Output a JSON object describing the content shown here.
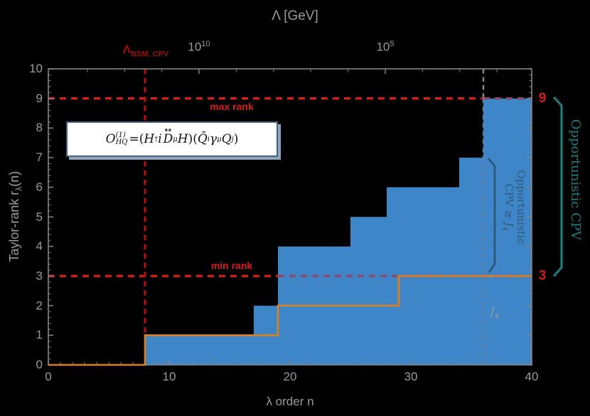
{
  "colors": {
    "background": "#000000",
    "frame": "#858585",
    "tick_text": "#9a9a9a",
    "blue_fill": "#3f86c8",
    "orange": "#dd7e1f",
    "red": "#d81b1b",
    "dark_red_line": "#b31111",
    "dark_red_text": "#9b0e0e",
    "gray_dash": "#8a8a8a",
    "red_over_blue": "#8c4a68",
    "gray_over_blue": "#5f7f9f",
    "teal": "#1d7c7a",
    "slate": "#2d5878",
    "eq_border": "#3d6286"
  },
  "top_axis": {
    "title": "Λ [GeV]",
    "bsm_label": {
      "symbol": "Λ",
      "subscript": "BSM, CPV"
    },
    "tick1": {
      "base": "10",
      "exp": "10"
    },
    "tick2": {
      "base": "10",
      "exp": "5"
    }
  },
  "y_axis": {
    "label_prefix": "Taylor-rank  r",
    "label_sub": "λ",
    "label_suffix": "(n)"
  },
  "x_axis": {
    "label": "λ order n"
  },
  "annotations": {
    "max_rank": "max rank",
    "min_rank": "min rank",
    "right_max": "9",
    "right_min": "3",
    "j4_symbol": "J",
    "j4_sub": "4",
    "opportunistic_cpv": "Opportunistic CPV",
    "opp_line1": "Opportunistic",
    "opp_line2_prefix": "CPV ",
    "opp_line2_gtrsim": "≳",
    "opp_line2_j": " J",
    "opp_line2_sub": "4"
  },
  "equation": {
    "o": "O",
    "o_sup": "(1)",
    "o_sub": "HQ",
    "eq": " = ",
    "p1": "(",
    "h1": "H",
    "dag": "†",
    "i": "i",
    "arrow": "↔",
    "d": "D",
    "mu1": "μ",
    "h2": "H",
    "p2": ")(",
    "qbar": "Q̄",
    "qi": "i",
    "gamma": "γ",
    "mu2": "μ",
    "q": "Q",
    "qj": "j",
    "p3": ")"
  },
  "chart_data": {
    "type": "step-area",
    "title": "Taylor-rank of CPV operator coefficient vs lambda order",
    "xlabel": "λ order n",
    "ylabel": "Taylor-rank r_λ(n)",
    "xlim": [
      0,
      40
    ],
    "ylim": [
      0,
      10
    ],
    "x_major_ticks": [
      0,
      10,
      20,
      30,
      40
    ],
    "x_minor_step": 1,
    "y_major_ticks": [
      0,
      1,
      2,
      3,
      4,
      5,
      6,
      7,
      8,
      9,
      10
    ],
    "y_minor_step": 0.2,
    "top_axis_label": "Λ [GeV]",
    "top_major_ticks_n": [
      12.47,
      27.88
    ],
    "top_minor_ticks_n": [
      3.24,
      6.32,
      9.39,
      15.55,
      18.63,
      21.71,
      24.8,
      30.96,
      34.04,
      37.12
    ],
    "series": [
      {
        "name": "blue-rank-region",
        "style": "filled-steps",
        "steps": [
          {
            "n_from": 8,
            "n_to": 17,
            "rank": 1
          },
          {
            "n_from": 17,
            "n_to": 19,
            "rank": 2
          },
          {
            "n_from": 19,
            "n_to": 25,
            "rank": 4
          },
          {
            "n_from": 25,
            "n_to": 28,
            "rank": 5
          },
          {
            "n_from": 28,
            "n_to": 34,
            "rank": 6
          },
          {
            "n_from": 34,
            "n_to": 36,
            "rank": 7
          },
          {
            "n_from": 36,
            "n_to": 40,
            "rank": 9
          }
        ]
      },
      {
        "name": "orange-rank-line",
        "style": "step-line",
        "steps": [
          {
            "n_from": 0,
            "n_to": 8,
            "rank": 0
          },
          {
            "n_from": 8,
            "n_to": 19,
            "rank": 1
          },
          {
            "n_from": 19,
            "n_to": 29,
            "rank": 2
          },
          {
            "n_from": 29,
            "n_to": 40,
            "rank": 3
          }
        ]
      }
    ],
    "reference_lines": {
      "max_rank": 9,
      "min_rank": 3,
      "bsm_cpv_vertical_n": 8,
      "j4_vertical_n": 36,
      "blue_starts_above_min_rank_at_n": 19
    },
    "brackets": {
      "teal_right": {
        "rank_top": 9,
        "rank_bottom": 3
      },
      "slate_inner": {
        "rank_top": 7,
        "rank_bottom": 3
      }
    }
  }
}
